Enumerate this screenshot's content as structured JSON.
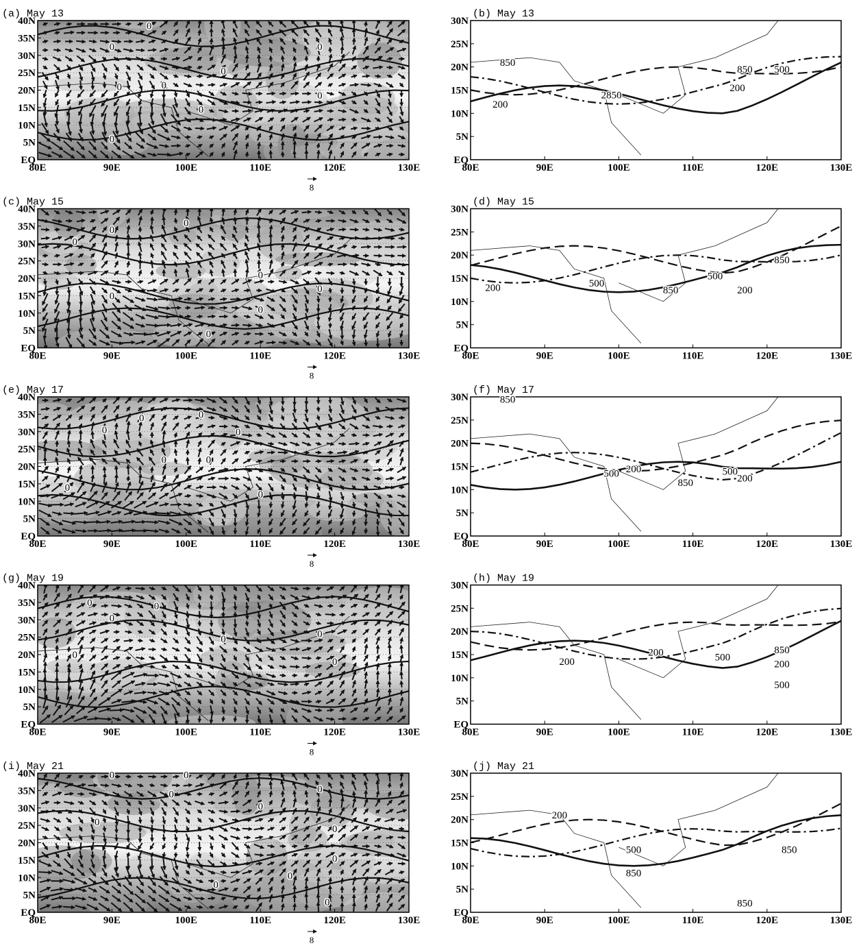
{
  "figure": {
    "xticks": [
      "80E",
      "90E",
      "100E",
      "110E",
      "120E",
      "130E"
    ],
    "left_yticks": [
      "EQ",
      "5N",
      "10N",
      "15N",
      "20N",
      "25N",
      "30N",
      "35N",
      "40N"
    ],
    "right_yticks": [
      "EQ",
      "5N",
      "10N",
      "15N",
      "20N",
      "25N",
      "30N"
    ],
    "panels": [
      {
        "label": "(a) May 13",
        "vector_scale": "8",
        "contour_labels": [
          "0",
          "0",
          "0",
          "0",
          "0",
          "0",
          "0",
          "0",
          "0"
        ]
      },
      {
        "label": "(b) May 13",
        "contour_labels": [
          "850",
          "200",
          "2850",
          "850",
          "500",
          "200"
        ]
      },
      {
        "label": "(c) May 15",
        "vector_scale": "8",
        "contour_labels": [
          "0",
          "0",
          "0",
          "0",
          "0",
          "0",
          "0",
          "0"
        ]
      },
      {
        "label": "(d) May 15",
        "contour_labels": [
          "200",
          "500",
          "500",
          "850",
          "200",
          "850"
        ]
      },
      {
        "label": "(e) May 17",
        "vector_scale": "8",
        "contour_labels": [
          "0",
          "0",
          "0",
          "0",
          "0",
          "0",
          "0",
          "0"
        ]
      },
      {
        "label": "(f) May 17",
        "contour_labels": [
          "850",
          "500",
          "200",
          "850",
          "500",
          "200"
        ]
      },
      {
        "label": "(g) May 19",
        "vector_scale": "8",
        "contour_labels": [
          "0",
          "0",
          "0",
          "0",
          "0",
          "0",
          "0"
        ]
      },
      {
        "label": "(h) May 19",
        "contour_labels": [
          "200",
          "200",
          "500",
          "850",
          "200",
          "500"
        ]
      },
      {
        "label": "(i) May 21",
        "vector_scale": "8",
        "contour_labels": [
          "0",
          "0",
          "0",
          "0",
          "0",
          "0",
          "0",
          "0",
          "0",
          "0",
          "0"
        ]
      },
      {
        "label": "(j) May 21",
        "contour_labels": [
          "200",
          "500",
          "850",
          "850",
          "850"
        ]
      }
    ]
  }
}
